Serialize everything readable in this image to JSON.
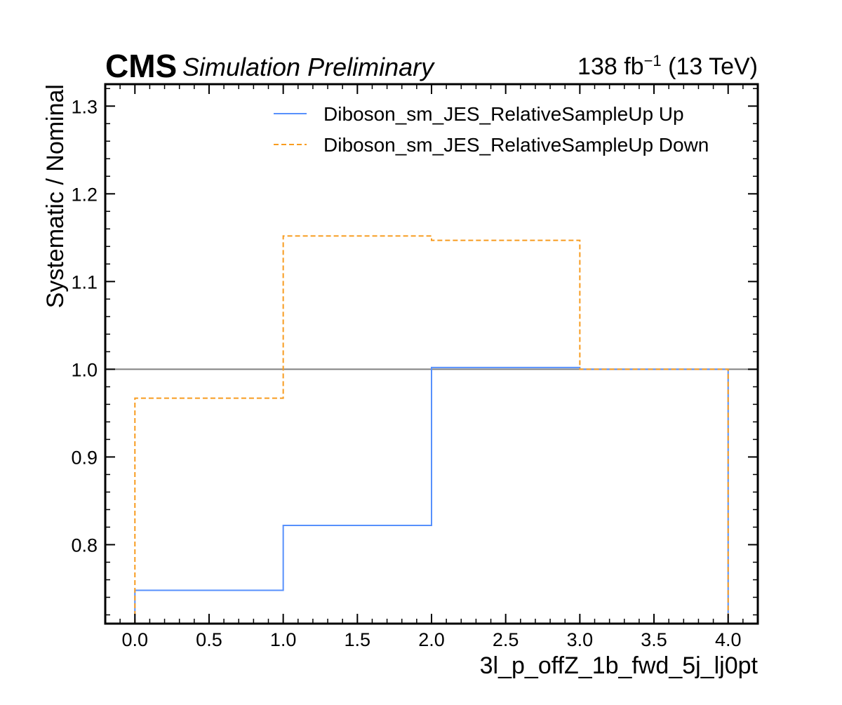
{
  "header": {
    "experiment": "CMS",
    "status": "Simulation Preliminary",
    "lumi": "138 fb",
    "lumi_exp": "−1",
    "energy": " (13 TeV)"
  },
  "chart_data": {
    "type": "line",
    "drawstyle": "steps",
    "xlabel": "3l_p_offZ_1b_fwd_5j_lj0pt",
    "ylabel": "Systematic / Nominal",
    "xlim": [
      -0.2,
      4.2
    ],
    "ylim": [
      0.71,
      1.325
    ],
    "xticks": [
      0.0,
      0.5,
      1.0,
      1.5,
      2.0,
      2.5,
      3.0,
      3.5,
      4.0
    ],
    "xtick_labels": [
      "0.0",
      "0.5",
      "1.0",
      "1.5",
      "2.0",
      "2.5",
      "3.0",
      "3.5",
      "4.0"
    ],
    "yticks": [
      0.8,
      0.9,
      1.0,
      1.1,
      1.2,
      1.3
    ],
    "ytick_labels": [
      "0.8",
      "0.9",
      "1.0",
      "1.1",
      "1.2",
      "1.3"
    ],
    "bin_edges": [
      0,
      1,
      2,
      3,
      4
    ],
    "reference_line": 1.0,
    "grid": false,
    "legend_position": "top-right",
    "series": [
      {
        "name": "Diboson_sm_JES_RelativeSampleUp Up",
        "color": "#5790fc",
        "dash": "solid",
        "values": [
          0.748,
          0.822,
          1.002,
          1.0
        ]
      },
      {
        "name": "Diboson_sm_JES_RelativeSampleUp Down",
        "color": "#f89c20",
        "dash": "dashed",
        "values": [
          0.967,
          1.152,
          1.147,
          1.0
        ]
      }
    ],
    "reference_color": "#808080"
  }
}
